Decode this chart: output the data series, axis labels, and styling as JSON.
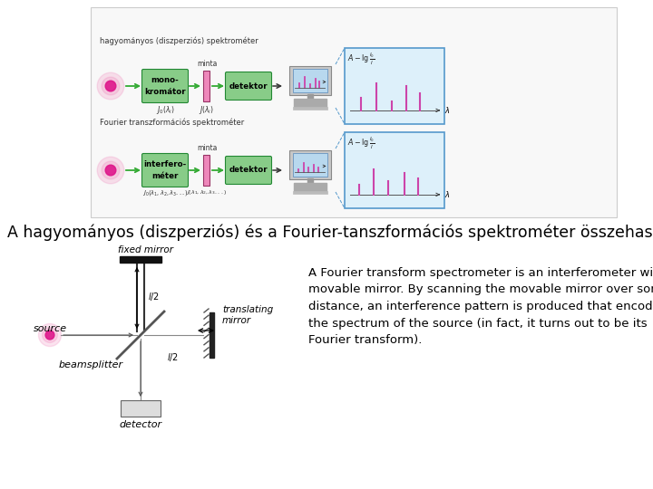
{
  "title_text": "A hagyományos (diszperziós) és a Fourier-tanszformációs spektrométer összehasonlítása",
  "title_fontsize": 12.5,
  "body_text": "A Fourier transform spectrometer is an interferometer with a\nmovable mirror. By scanning the movable mirror over some\ndistance, an interference pattern is produced that encodes\nthe spectrum of the source (in fact, it turns out to be its\nFourier transform).",
  "body_fontsize": 9.5,
  "fixed_mirror_label": "fixed mirror",
  "source_label": "source",
  "beamsplitter_label": "beamsplitter",
  "detector_label": "detector",
  "translating_mirror_label": "translating\nmirror",
  "bg_color": "#ffffff",
  "row1_label": "hagyományos (diszperziós) spektrométer",
  "row2_label": "Fourier transzformációs spektrométer",
  "row1_box1": "mono-\nkromátor",
  "row2_box1": "interfero-\nméter",
  "detektor": "detektor",
  "minta": "minta"
}
